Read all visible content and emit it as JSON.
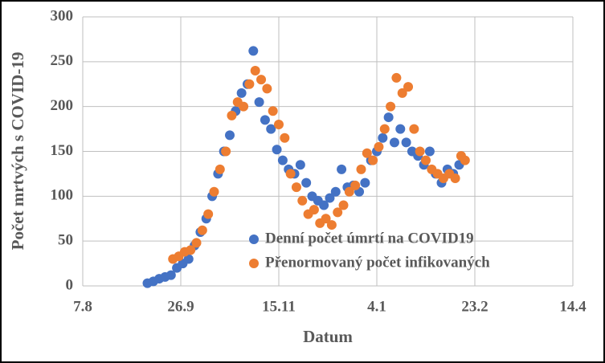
{
  "chart_data": {
    "type": "scatter",
    "x_label": "Datum",
    "y_label": "Počet mrtvých s COVID-19",
    "xlim": [
      44050,
      44300
    ],
    "xticks": [
      {
        "value": 44050,
        "label": "7.8"
      },
      {
        "value": 44100,
        "label": "26.9"
      },
      {
        "value": 44150,
        "label": "15.11"
      },
      {
        "value": 44200,
        "label": "4.1"
      },
      {
        "value": 44250,
        "label": "23.2"
      },
      {
        "value": 44300,
        "label": "14.4"
      }
    ],
    "ylim": [
      0,
      300
    ],
    "yticks": [
      0,
      50,
      100,
      150,
      200,
      250,
      300
    ],
    "grid": true,
    "series": [
      {
        "name": "Denní počet úmrtí na COVID19",
        "color": "#4472c4",
        "x": [
          44083,
          44086,
          44089,
          44092,
          44095,
          44098,
          44101,
          44104,
          44107,
          44110,
          44113,
          44116,
          44119,
          44122,
          44125,
          44128,
          44131,
          44134,
          44137,
          44140,
          44143,
          44146,
          44149,
          44152,
          44155,
          44158,
          44161,
          44164,
          44167,
          44170,
          44173,
          44176,
          44179,
          44182,
          44185,
          44188,
          44191,
          44194,
          44197,
          44200,
          44203,
          44206,
          44209,
          44212,
          44215,
          44218,
          44221,
          44224,
          44227,
          44230,
          44233,
          44236,
          44239,
          44242
        ],
        "values": [
          3,
          5,
          8,
          10,
          12,
          20,
          25,
          30,
          45,
          60,
          75,
          100,
          125,
          150,
          168,
          195,
          215,
          225,
          262,
          205,
          185,
          175,
          152,
          140,
          130,
          125,
          135,
          115,
          100,
          95,
          90,
          98,
          105,
          130,
          110,
          112,
          105,
          115,
          140,
          150,
          165,
          188,
          160,
          175,
          160,
          150,
          145,
          135,
          150,
          125,
          115,
          130,
          125,
          135
        ]
      },
      {
        "name": "Přenormovaný počet infikovaných",
        "color": "#ed7d31",
        "x": [
          44096,
          44099,
          44102,
          44105,
          44108,
          44111,
          44114,
          44117,
          44120,
          44123,
          44126,
          44129,
          44132,
          44135,
          44138,
          44141,
          44144,
          44147,
          44150,
          44153,
          44156,
          44159,
          44162,
          44165,
          44168,
          44171,
          44174,
          44177,
          44180,
          44183,
          44186,
          44189,
          44192,
          44195,
          44198,
          44201,
          44204,
          44207,
          44210,
          44213,
          44216,
          44219,
          44222,
          44225,
          44228,
          44231,
          44234,
          44237,
          44240,
          44243,
          44245
        ],
        "values": [
          30,
          33,
          38,
          40,
          48,
          62,
          80,
          105,
          130,
          150,
          190,
          205,
          200,
          225,
          240,
          230,
          220,
          195,
          180,
          165,
          125,
          110,
          95,
          80,
          85,
          70,
          75,
          68,
          82,
          90,
          105,
          112,
          130,
          148,
          140,
          155,
          175,
          200,
          232,
          215,
          222,
          175,
          150,
          140,
          130,
          125,
          120,
          125,
          120,
          145,
          140
        ]
      }
    ]
  }
}
